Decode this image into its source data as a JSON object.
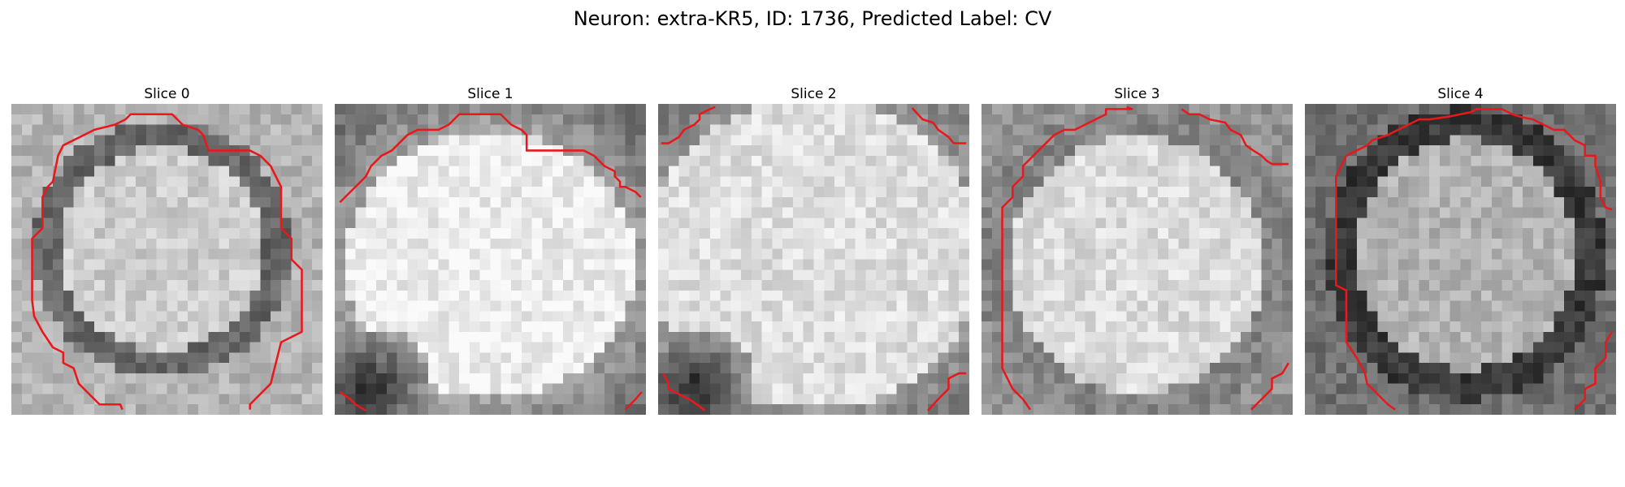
{
  "figure": {
    "title": "Neuron: extra-KR5, ID: 1736, Predicted Label: CV"
  },
  "slices": [
    {
      "title": "Slice 0",
      "texture": "ring",
      "bg": 0.66,
      "shell": 0.4,
      "interior": 0.8,
      "cx": 14.5,
      "cy": 14.0,
      "rx": 11.5,
      "ry": 11.5,
      "seed": 11
    },
    {
      "title": "Slice 1",
      "texture": "bright",
      "bg": 0.45,
      "shell": 0.55,
      "interior": 0.93,
      "cx": 15.0,
      "cy": 15.5,
      "rx": 14.0,
      "ry": 13.0,
      "seed": 23
    },
    {
      "title": "Slice 2",
      "texture": "bright",
      "bg": 0.42,
      "shell": 0.6,
      "interior": 0.87,
      "cx": 15.0,
      "cy": 14.5,
      "rx": 16.0,
      "ry": 15.0,
      "seed": 37
    },
    {
      "title": "Slice 3",
      "texture": "ring",
      "bg": 0.42,
      "shell": 0.52,
      "interior": 0.86,
      "cx": 15.0,
      "cy": 15.5,
      "rx": 14.5,
      "ry": 14.5,
      "seed": 41
    },
    {
      "title": "Slice 4",
      "texture": "ring",
      "bg": 0.3,
      "shell": 0.22,
      "interior": 0.7,
      "cx": 15.5,
      "cy": 14.5,
      "rx": 12.5,
      "ry": 13.0,
      "seed": 53
    }
  ],
  "contour_color": "#e8181c"
}
